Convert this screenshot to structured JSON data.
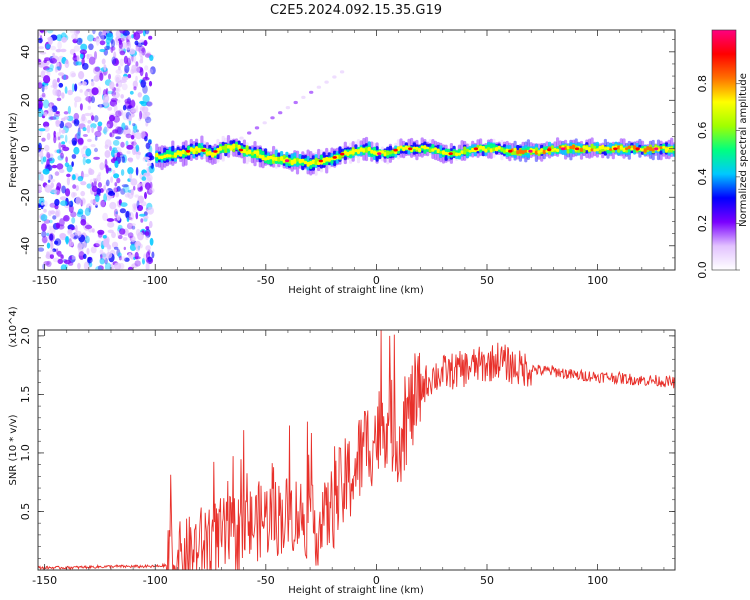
{
  "title": "C2E5.2024.092.15.35.G19",
  "chart_data": [
    {
      "type": "heatmap",
      "xlabel": "Height of straight line (km)",
      "ylabel": "Frequency (Hz)",
      "xlim": [
        -153,
        135
      ],
      "ylim": [
        -50,
        49
      ],
      "xticks": [
        -150,
        -100,
        -50,
        0,
        50,
        100
      ],
      "yticks": [
        -40,
        -20,
        0,
        20,
        40
      ],
      "colorbar": {
        "label": "Normalized spectral amplitude",
        "range": [
          0,
          1
        ],
        "ticks": [
          "0.0",
          "0.2",
          "0.4",
          "0.6",
          "0.8"
        ],
        "colors": [
          "#ffffff",
          "#e2c2ff",
          "#7a00ff",
          "#0000ff",
          "#00c8ff",
          "#00ff80",
          "#a0ff00",
          "#ffff00",
          "#ff7000",
          "#ff0000",
          "#ff0080"
        ]
      },
      "noise_region_x": [
        -153,
        -101
      ],
      "ridge": {
        "x": [
          -100,
          -95,
          -90,
          -85,
          -80,
          -75,
          -70,
          -65,
          -60,
          -55,
          -50,
          -45,
          -40,
          -35,
          -30,
          -25,
          -20,
          -15,
          -10,
          -5,
          0,
          5,
          10,
          15,
          20,
          25,
          30,
          35,
          40,
          45,
          50,
          55,
          60,
          65,
          70,
          75,
          80,
          85,
          90,
          95,
          100,
          105,
          110,
          115,
          120,
          125,
          130,
          135
        ],
        "frequency": [
          -3,
          -3,
          -2,
          -1,
          0,
          -2,
          0,
          1,
          -1,
          -2,
          -4,
          -4,
          -5,
          -5,
          -6,
          -5,
          -4,
          -2,
          -1,
          0,
          -2,
          -2,
          0,
          0,
          0,
          0,
          -2,
          -2,
          -1,
          0,
          0,
          0,
          -1,
          -1,
          -1,
          -1,
          0,
          0,
          0,
          0,
          0,
          0,
          0,
          0,
          0,
          0,
          0,
          0
        ]
      }
    },
    {
      "type": "line",
      "xlabel": "Height of straight line (km)",
      "ylabel": "SNR (10 * v/v)",
      "y_multiplier": "(x10^4)",
      "xlim": [
        -153,
        135
      ],
      "ylim": [
        0,
        2.05
      ],
      "xticks": [
        -150,
        -100,
        -50,
        0,
        50,
        100
      ],
      "yticks": [
        "0.5",
        "1.0",
        "1.5",
        "2.0"
      ],
      "color": "#e8302a",
      "series": [
        {
          "name": "SNR",
          "x": [
            -153,
            -140,
            -120,
            -100,
            -95,
            -90,
            -85,
            -80,
            -75,
            -70,
            -65,
            -60,
            -55,
            -50,
            -45,
            -40,
            -35,
            -30,
            -25,
            -20,
            -15,
            -10,
            -5,
            0,
            5,
            10,
            15,
            20,
            25,
            30,
            35,
            40,
            45,
            50,
            55,
            60,
            65,
            70,
            75,
            80,
            85,
            90,
            95,
            100,
            105,
            110,
            115,
            120,
            125,
            130,
            135
          ],
          "values": [
            0.02,
            0.02,
            0.03,
            0.03,
            0.04,
            0.06,
            0.12,
            0.2,
            0.26,
            0.28,
            0.3,
            0.35,
            0.4,
            0.45,
            0.45,
            0.48,
            0.48,
            0.4,
            0.35,
            0.55,
            0.7,
            0.85,
            1.05,
            1.15,
            1.3,
            1.1,
            1.35,
            1.55,
            1.65,
            1.68,
            1.7,
            1.72,
            1.75,
            1.75,
            1.8,
            1.75,
            1.72,
            1.72,
            1.7,
            1.7,
            1.68,
            1.66,
            1.66,
            1.65,
            1.65,
            1.64,
            1.63,
            1.62,
            1.62,
            1.61,
            1.6
          ]
        }
      ]
    }
  ]
}
